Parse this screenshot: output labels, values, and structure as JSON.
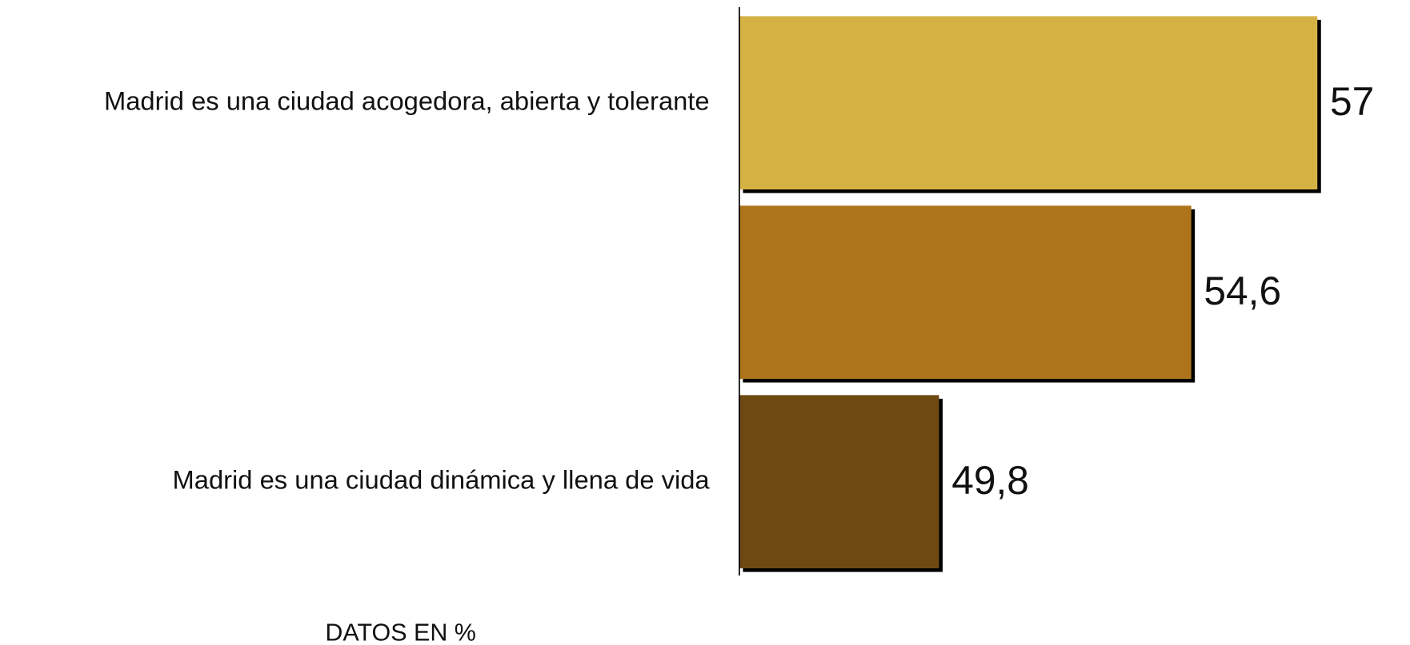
{
  "chart_data": {
    "type": "bar",
    "orientation": "horizontal",
    "categories": [
      "Madrid es una ciudad acogedora, abierta y tolerante",
      null,
      "Madrid es una ciudad dinámica y llena de vida"
    ],
    "values": [
      57,
      54.6,
      49.8
    ],
    "value_labels": [
      "57",
      "54,6",
      "49,8"
    ],
    "colors": [
      "#d6b244",
      "#ae741b",
      "#6e4a12"
    ],
    "xlim": [
      46,
      57
    ],
    "annotation": "DATOS EN %"
  }
}
